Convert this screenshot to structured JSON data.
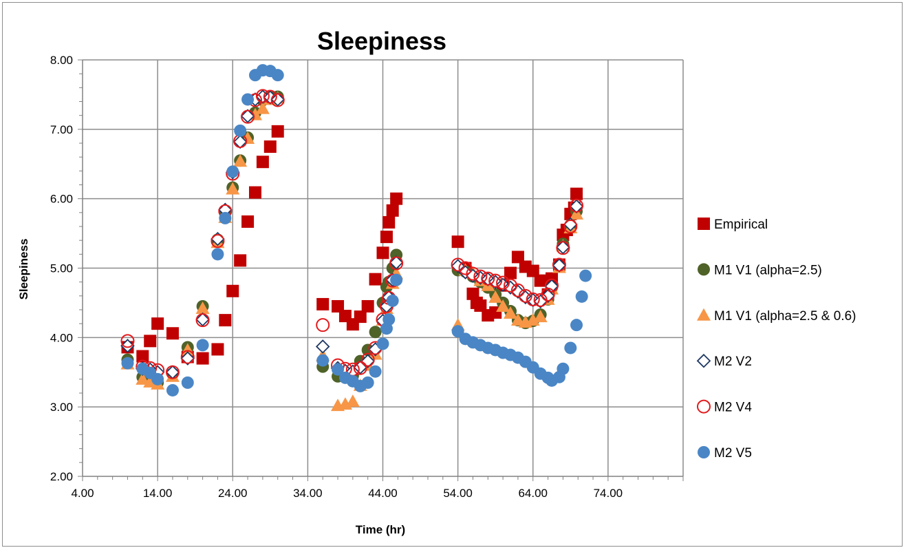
{
  "chart_data": {
    "type": "scatter",
    "title": "Sleepiness",
    "xlabel": "Time (hr)",
    "ylabel": "Sleepiness",
    "xlim": [
      4,
      84
    ],
    "ylim": [
      2,
      8
    ],
    "x_ticks": [
      "4.00",
      "14.00",
      "24.00",
      "34.00",
      "44.00",
      "54.00",
      "64.00",
      "74.00"
    ],
    "y_ticks": [
      "2.00",
      "3.00",
      "4.00",
      "5.00",
      "6.00",
      "7.00",
      "8.00"
    ],
    "grid": true,
    "legend_position": "right",
    "series": [
      {
        "name": "Empirical",
        "marker": "square",
        "color": "#c00000",
        "points": [
          [
            10,
            3.86
          ],
          [
            12,
            3.73
          ],
          [
            13,
            3.95
          ],
          [
            14,
            4.2
          ],
          [
            16,
            4.06
          ],
          [
            18,
            3.72
          ],
          [
            20,
            3.7
          ],
          [
            22,
            3.83
          ],
          [
            23,
            4.25
          ],
          [
            24,
            4.67
          ],
          [
            25,
            5.11
          ],
          [
            26,
            5.67
          ],
          [
            27,
            6.09
          ],
          [
            28,
            6.53
          ],
          [
            29,
            6.75
          ],
          [
            30,
            6.97
          ],
          [
            36,
            4.48
          ],
          [
            38,
            4.45
          ],
          [
            39,
            4.31
          ],
          [
            40,
            4.19
          ],
          [
            41,
            4.3
          ],
          [
            42,
            4.45
          ],
          [
            43,
            4.84
          ],
          [
            44,
            5.22
          ],
          [
            44.5,
            5.45
          ],
          [
            44.8,
            5.66
          ],
          [
            45.3,
            5.83
          ],
          [
            45.8,
            6.0
          ],
          [
            54,
            5.38
          ],
          [
            55,
            5.0
          ],
          [
            56,
            4.63
          ],
          [
            56.5,
            4.5
          ],
          [
            57,
            4.46
          ],
          [
            58,
            4.32
          ],
          [
            59,
            4.36
          ],
          [
            60,
            4.75
          ],
          [
            61,
            4.93
          ],
          [
            62,
            5.16
          ],
          [
            63,
            5.02
          ],
          [
            64,
            4.96
          ],
          [
            65,
            4.82
          ],
          [
            66,
            4.62
          ],
          [
            66.5,
            4.85
          ],
          [
            67.5,
            5.05
          ],
          [
            68,
            5.48
          ],
          [
            68.5,
            5.55
          ],
          [
            69,
            5.78
          ],
          [
            69.5,
            5.87
          ],
          [
            69.8,
            6.07
          ]
        ]
      },
      {
        "name": "M1 V1 (alpha=2.5)",
        "marker": "circle",
        "color": "#4f6228",
        "points": [
          [
            10,
            3.68
          ],
          [
            12,
            3.43
          ],
          [
            13,
            3.4
          ],
          [
            14,
            3.35
          ],
          [
            16,
            3.48
          ],
          [
            18,
            3.86
          ],
          [
            20,
            4.45
          ],
          [
            22,
            5.41
          ],
          [
            23,
            5.8
          ],
          [
            24,
            6.16
          ],
          [
            25,
            6.55
          ],
          [
            26,
            6.88
          ],
          [
            27,
            7.24
          ],
          [
            28,
            7.42
          ],
          [
            29,
            7.46
          ],
          [
            30,
            7.47
          ],
          [
            36,
            3.58
          ],
          [
            38,
            3.44
          ],
          [
            39,
            3.44
          ],
          [
            40,
            3.45
          ],
          [
            41,
            3.66
          ],
          [
            42,
            3.82
          ],
          [
            43,
            4.08
          ],
          [
            44,
            4.5
          ],
          [
            44.5,
            4.73
          ],
          [
            44.8,
            4.8
          ],
          [
            45.3,
            5.0
          ],
          [
            45.8,
            5.19
          ],
          [
            54,
            4.97
          ],
          [
            55,
            4.95
          ],
          [
            56,
            4.88
          ],
          [
            57,
            4.8
          ],
          [
            58,
            4.72
          ],
          [
            59,
            4.62
          ],
          [
            60,
            4.5
          ],
          [
            61,
            4.38
          ],
          [
            62,
            4.25
          ],
          [
            63,
            4.21
          ],
          [
            64,
            4.24
          ],
          [
            65,
            4.33
          ],
          [
            66,
            4.55
          ],
          [
            66.5,
            4.72
          ],
          [
            67.5,
            5.02
          ],
          [
            68,
            5.35
          ],
          [
            69,
            5.62
          ],
          [
            69.8,
            5.82
          ]
        ]
      },
      {
        "name": "M1 V1 (alpha=2.5 & 0.6)",
        "marker": "triangle",
        "color": "#f79646",
        "points": [
          [
            10,
            3.62
          ],
          [
            12,
            3.4
          ],
          [
            13,
            3.36
          ],
          [
            14,
            3.33
          ],
          [
            16,
            3.44
          ],
          [
            18,
            3.82
          ],
          [
            20,
            4.42
          ],
          [
            22,
            5.37
          ],
          [
            23,
            5.73
          ],
          [
            24,
            6.14
          ],
          [
            25,
            6.54
          ],
          [
            26,
            6.87
          ],
          [
            27,
            7.21
          ],
          [
            28,
            7.3
          ],
          [
            29,
            7.43
          ],
          [
            30,
            7.45
          ],
          [
            36,
            3.74
          ],
          [
            38,
            3.02
          ],
          [
            39,
            3.04
          ],
          [
            40,
            3.08
          ],
          [
            41,
            3.31
          ],
          [
            42,
            3.6
          ],
          [
            43,
            3.76
          ],
          [
            44,
            4.25
          ],
          [
            44.5,
            4.42
          ],
          [
            44.8,
            4.55
          ],
          [
            45.3,
            4.78
          ],
          [
            45.8,
            4.92
          ],
          [
            54,
            4.18
          ],
          [
            55,
            4.97
          ],
          [
            56,
            4.93
          ],
          [
            57,
            4.82
          ],
          [
            58,
            4.75
          ],
          [
            59,
            4.58
          ],
          [
            60,
            4.45
          ],
          [
            61,
            4.35
          ],
          [
            62,
            4.25
          ],
          [
            63,
            4.22
          ],
          [
            64,
            4.25
          ],
          [
            65,
            4.3
          ],
          [
            66,
            4.55
          ],
          [
            66.5,
            4.7
          ],
          [
            67.5,
            5.01
          ],
          [
            68,
            5.32
          ],
          [
            69,
            5.58
          ],
          [
            69.8,
            5.78
          ]
        ]
      },
      {
        "name": "M2 V2",
        "marker": "diamond",
        "color": "#1f3864",
        "points": [
          [
            10,
            3.88
          ],
          [
            12,
            3.55
          ],
          [
            13,
            3.54
          ],
          [
            14,
            3.5
          ],
          [
            16,
            3.5
          ],
          [
            18,
            3.7
          ],
          [
            20,
            4.26
          ],
          [
            22,
            5.42
          ],
          [
            23,
            5.84
          ],
          [
            24,
            6.38
          ],
          [
            25,
            6.82
          ],
          [
            26,
            7.19
          ],
          [
            27,
            7.43
          ],
          [
            28,
            7.47
          ],
          [
            29,
            7.46
          ],
          [
            30,
            7.43
          ],
          [
            36,
            3.87
          ],
          [
            38,
            3.56
          ],
          [
            39,
            3.52
          ],
          [
            40,
            3.51
          ],
          [
            41,
            3.57
          ],
          [
            42,
            3.66
          ],
          [
            43,
            3.83
          ],
          [
            44,
            4.24
          ],
          [
            44.5,
            4.45
          ],
          [
            44.8,
            4.58
          ],
          [
            45.3,
            4.83
          ],
          [
            45.8,
            5.08
          ],
          [
            54,
            5.03
          ],
          [
            55,
            4.94
          ],
          [
            56,
            4.89
          ],
          [
            57,
            4.86
          ],
          [
            58,
            4.84
          ],
          [
            59,
            4.8
          ],
          [
            60,
            4.76
          ],
          [
            61,
            4.72
          ],
          [
            62,
            4.66
          ],
          [
            63,
            4.58
          ],
          [
            64,
            4.54
          ],
          [
            65,
            4.52
          ],
          [
            66,
            4.6
          ],
          [
            66.5,
            4.74
          ],
          [
            67.5,
            5.04
          ],
          [
            68,
            5.3
          ],
          [
            69,
            5.63
          ],
          [
            69.8,
            5.89
          ]
        ]
      },
      {
        "name": "M2 V4",
        "marker": "open-circle",
        "color": "#e31a1c",
        "points": [
          [
            10,
            3.95
          ],
          [
            12,
            3.58
          ],
          [
            13,
            3.56
          ],
          [
            14,
            3.53
          ],
          [
            16,
            3.5
          ],
          [
            18,
            3.72
          ],
          [
            20,
            4.25
          ],
          [
            22,
            5.39
          ],
          [
            23,
            5.82
          ],
          [
            24,
            6.36
          ],
          [
            25,
            6.83
          ],
          [
            26,
            7.18
          ],
          [
            27,
            7.42
          ],
          [
            28,
            7.48
          ],
          [
            29,
            7.47
          ],
          [
            30,
            7.42
          ],
          [
            36,
            4.18
          ],
          [
            38,
            3.6
          ],
          [
            39,
            3.55
          ],
          [
            40,
            3.54
          ],
          [
            41,
            3.56
          ],
          [
            42,
            3.68
          ],
          [
            43,
            3.85
          ],
          [
            44,
            4.26
          ],
          [
            44.5,
            4.45
          ],
          [
            44.8,
            4.57
          ],
          [
            45.3,
            4.82
          ],
          [
            45.8,
            5.07
          ],
          [
            54,
            5.05
          ],
          [
            55,
            5.0
          ],
          [
            56,
            4.92
          ],
          [
            57,
            4.88
          ],
          [
            58,
            4.85
          ],
          [
            59,
            4.82
          ],
          [
            60,
            4.79
          ],
          [
            61,
            4.75
          ],
          [
            62,
            4.68
          ],
          [
            63,
            4.6
          ],
          [
            64,
            4.55
          ],
          [
            65,
            4.54
          ],
          [
            66,
            4.62
          ],
          [
            66.5,
            4.75
          ],
          [
            67.5,
            5.05
          ],
          [
            68,
            5.29
          ],
          [
            69,
            5.6
          ],
          [
            69.8,
            5.9
          ]
        ]
      },
      {
        "name": "M2 V5",
        "marker": "circle",
        "color": "#4a86c5",
        "points": [
          [
            10,
            3.63
          ],
          [
            12,
            3.55
          ],
          [
            13,
            3.49
          ],
          [
            14,
            3.4
          ],
          [
            16,
            3.24
          ],
          [
            18,
            3.35
          ],
          [
            20,
            3.89
          ],
          [
            22,
            5.2
          ],
          [
            23,
            5.72
          ],
          [
            24,
            6.39
          ],
          [
            25,
            6.98
          ],
          [
            26,
            7.43
          ],
          [
            27,
            7.78
          ],
          [
            28,
            7.85
          ],
          [
            29,
            7.84
          ],
          [
            30,
            7.78
          ],
          [
            36,
            3.67
          ],
          [
            38,
            3.54
          ],
          [
            39,
            3.42
          ],
          [
            40,
            3.37
          ],
          [
            41,
            3.3
          ],
          [
            42,
            3.35
          ],
          [
            43,
            3.51
          ],
          [
            44,
            3.91
          ],
          [
            44.5,
            4.13
          ],
          [
            44.8,
            4.26
          ],
          [
            45.3,
            4.53
          ],
          [
            45.8,
            4.83
          ],
          [
            54,
            4.09
          ],
          [
            55,
            3.98
          ],
          [
            56,
            3.93
          ],
          [
            57,
            3.89
          ],
          [
            58,
            3.85
          ],
          [
            59,
            3.82
          ],
          [
            60,
            3.78
          ],
          [
            61,
            3.75
          ],
          [
            62,
            3.71
          ],
          [
            63,
            3.65
          ],
          [
            64,
            3.57
          ],
          [
            65,
            3.48
          ],
          [
            66,
            3.42
          ],
          [
            66.5,
            3.38
          ],
          [
            67.5,
            3.43
          ],
          [
            68,
            3.55
          ],
          [
            69,
            3.85
          ],
          [
            69.8,
            4.18
          ],
          [
            70.5,
            4.59
          ],
          [
            71,
            4.89
          ]
        ]
      }
    ]
  }
}
